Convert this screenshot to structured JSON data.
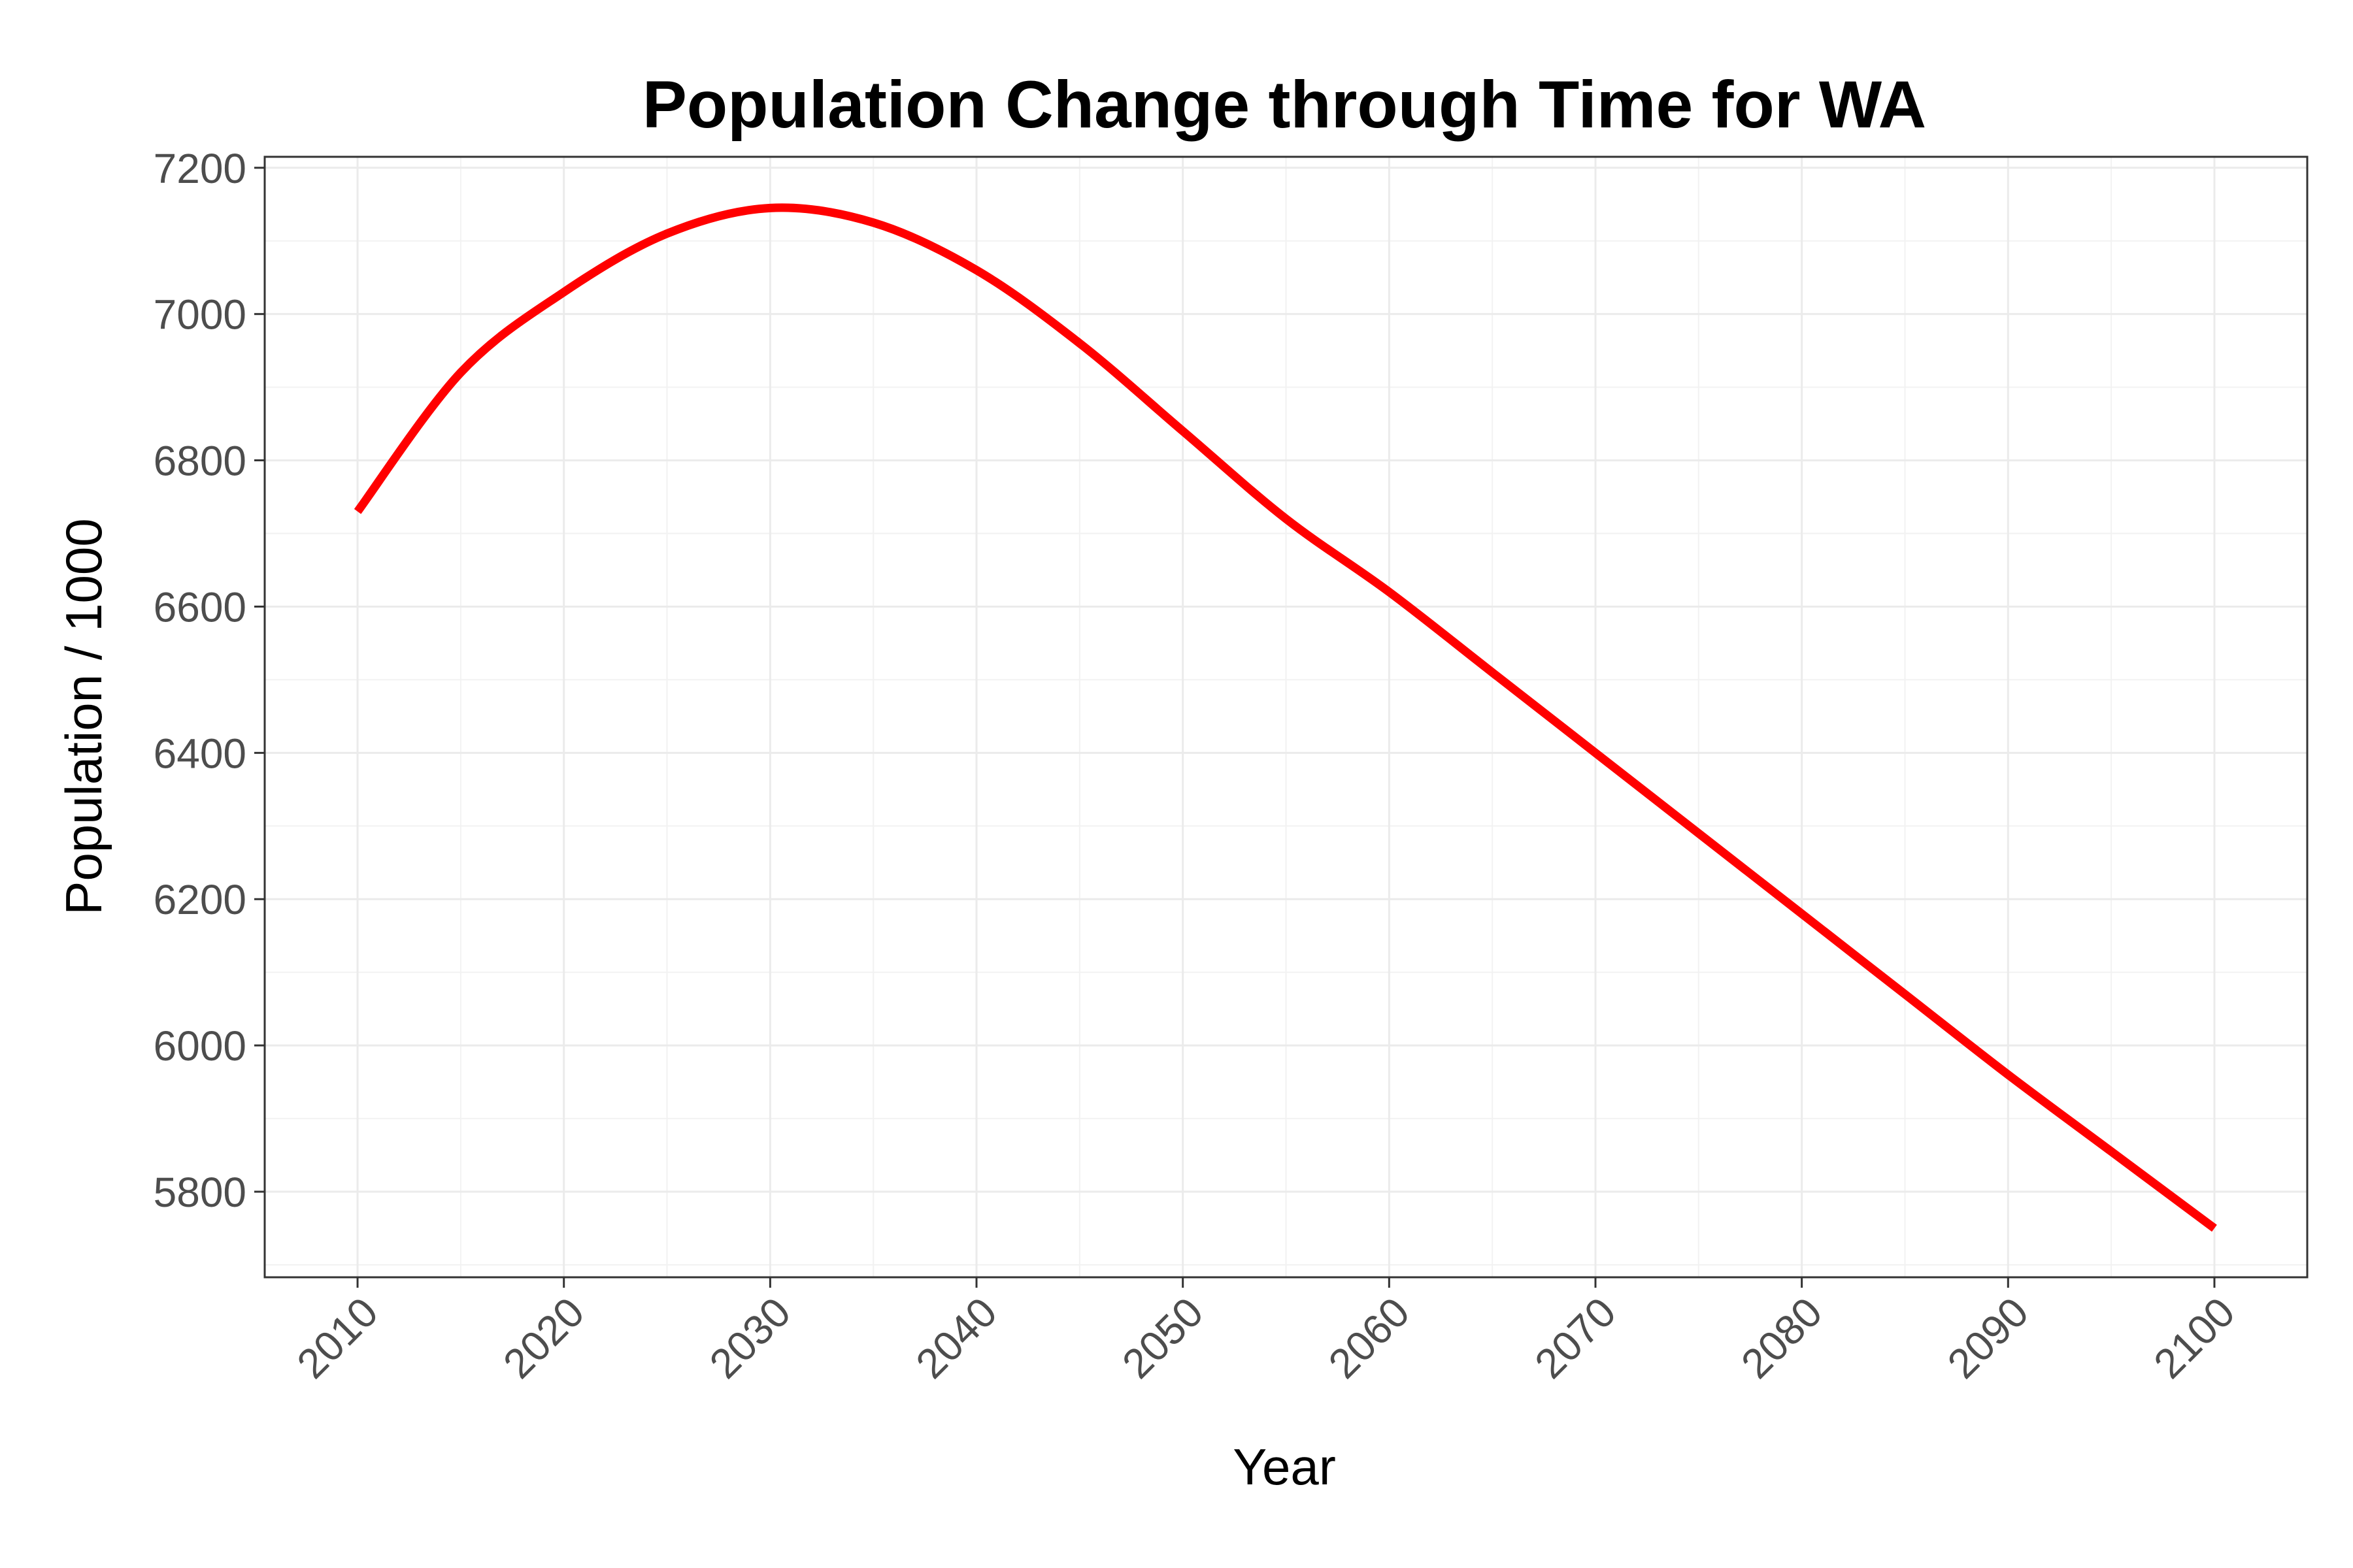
{
  "chart_data": {
    "type": "line",
    "title": "Population Change through Time for WA",
    "xlabel": "Year",
    "ylabel": "Population / 1000",
    "xlim": [
      2005.5,
      2104.5
    ],
    "ylim": [
      5683,
      7215
    ],
    "x_ticks": [
      2010,
      2020,
      2030,
      2040,
      2050,
      2060,
      2070,
      2080,
      2090,
      2100
    ],
    "y_ticks": [
      5800,
      6000,
      6200,
      6400,
      6600,
      6800,
      7000,
      7200
    ],
    "grid": true,
    "legend": "none",
    "series": [
      {
        "color": "#ff0000",
        "x": [
          2010,
          2015,
          2020,
          2025,
          2030,
          2035,
          2040,
          2045,
          2050,
          2055,
          2060,
          2065,
          2070,
          2075,
          2080,
          2085,
          2090,
          2095,
          2100
        ],
        "y": [
          6730,
          6920,
          7030,
          7110,
          7145,
          7125,
          7060,
          6960,
          6840,
          6720,
          6620,
          6510,
          6400,
          6290,
          6180,
          6070,
          5960,
          5855,
          5750
        ]
      }
    ]
  }
}
